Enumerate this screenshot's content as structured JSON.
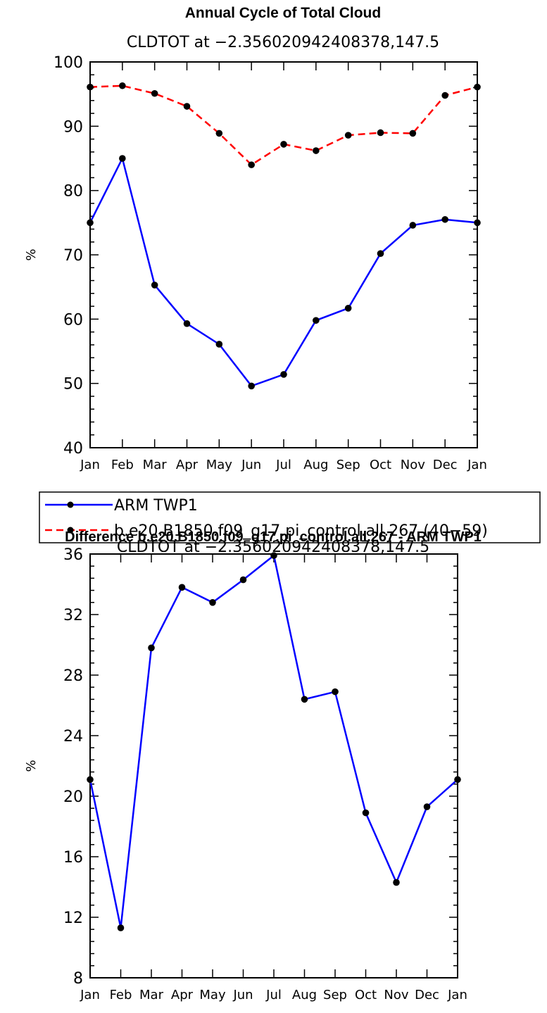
{
  "chart_data": [
    {
      "type": "line",
      "title": "Annual Cycle of Total Cloud",
      "subtitle": "CLDTOT at −2.356020942408378,147.5",
      "ylabel": "%",
      "xlabel": "",
      "categories": [
        "Jan",
        "Feb",
        "Mar",
        "Apr",
        "May",
        "Jun",
        "Jul",
        "Aug",
        "Sep",
        "Oct",
        "Nov",
        "Dec",
        "Jan"
      ],
      "ylim": [
        40,
        100
      ],
      "yticks": [
        "40",
        "50",
        "60",
        "70",
        "80",
        "90",
        "100"
      ],
      "legend_position": "bottom",
      "series": [
        {
          "name": "ARM TWP1",
          "color": "#0000ff",
          "dash": "solid",
          "values": [
            75.0,
            85.0,
            65.3,
            59.3,
            56.1,
            49.6,
            51.4,
            59.8,
            61.7,
            70.2,
            74.6,
            75.5,
            75.0
          ]
        },
        {
          "name": "b.e20.B1850.f09_g17.pi_control.all.267 (40−59)",
          "color": "#ff0000",
          "dash": "dashed",
          "values": [
            96.1,
            96.3,
            95.1,
            93.1,
            88.9,
            84.0,
            87.2,
            86.2,
            88.6,
            89.0,
            88.9,
            94.8,
            96.1
          ]
        }
      ]
    },
    {
      "type": "line",
      "title": "Difference b.e20.B1850.f09_g17.pi_control.all.267 - ARM TWP1",
      "subtitle": "CLDTOT at −2.356020942408378,147.5",
      "ylabel": "%",
      "xlabel": "",
      "categories": [
        "Jan",
        "Feb",
        "Mar",
        "Apr",
        "May",
        "Jun",
        "Jul",
        "Aug",
        "Sep",
        "Oct",
        "Nov",
        "Dec",
        "Jan"
      ],
      "ylim": [
        8,
        36
      ],
      "yticks": [
        "8",
        "12",
        "16",
        "20",
        "24",
        "28",
        "32",
        "36"
      ],
      "series": [
        {
          "color": "#0000ff",
          "dash": "solid",
          "values": [
            21.1,
            11.3,
            29.8,
            33.8,
            32.8,
            34.3,
            35.9,
            26.4,
            26.9,
            18.9,
            14.3,
            19.3,
            21.1
          ]
        }
      ]
    }
  ]
}
